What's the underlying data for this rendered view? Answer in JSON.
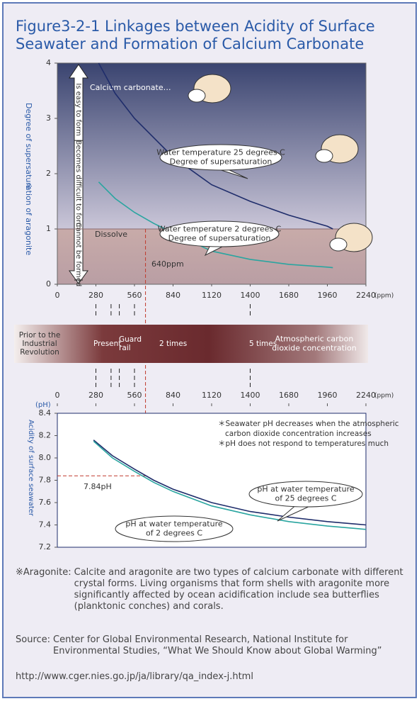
{
  "title": [
    "Figure3-2-1 Linkages between Acidity of Surface",
    "Seawater and Formation of Calcium Carbonate"
  ],
  "chart_data": [
    {
      "type": "line",
      "y_label": "Degree of supersaturation of aragonite",
      "y_label_mark": "※",
      "x_unit": "(ppm)",
      "xlim": [
        0,
        2240
      ],
      "xticks": [
        0,
        280,
        560,
        840,
        1120,
        1400,
        1680,
        1960,
        2240
      ],
      "ylim": [
        0,
        4
      ],
      "yticks": [
        0,
        1,
        2,
        3,
        4
      ],
      "threshold": 1,
      "stages": [
        "Is easy to form",
        "Becomes difficult to form",
        "Cannot be formed"
      ],
      "annotations": {
        "calcium": "Calcium carbonate…",
        "dissolve": "Dissolve"
      },
      "marker": {
        "x": 640,
        "label": "640ppm"
      },
      "x": [
        300,
        420,
        560,
        700,
        840,
        1120,
        1400,
        1680,
        1960,
        2000
      ],
      "series": [
        {
          "name": [
            "Water temperature 25 degrees C",
            "Degree of supersaturation"
          ],
          "color": "#1f2d6b",
          "values": [
            4.0,
            3.45,
            3.0,
            2.65,
            2.3,
            1.8,
            1.5,
            1.25,
            1.05,
            1.0
          ]
        },
        {
          "name": [
            "Water temperature 2 degrees C",
            "Degree of supersaturation"
          ],
          "color": "#2aa5a0",
          "values": [
            1.85,
            1.55,
            1.3,
            1.1,
            0.93,
            0.6,
            0.45,
            0.36,
            0.31,
            0.3
          ]
        }
      ]
    },
    {
      "type": "line",
      "y_label": "Acidity of surface seawater",
      "y_unit": "(pH)",
      "xlim": [
        0,
        2240
      ],
      "xticks": [
        0,
        280,
        560,
        840,
        1120,
        1400,
        1680,
        1960,
        2240
      ],
      "x_unit": "(ppm)",
      "ylim": [
        7.2,
        8.4
      ],
      "yticks": [
        7.2,
        7.4,
        7.6,
        7.8,
        {
          "value": 8,
          "label": "8.0"
        },
        8.2,
        8.4
      ],
      "notes": [
        "＊Seawater pH decreases when the atmospheric",
        "carbon dioxide concentration increases",
        "＊pH does not respond to temperatures much"
      ],
      "marker": {
        "x": 640,
        "y": 7.84,
        "label": "7.84pH"
      },
      "x": [
        263,
        400,
        560,
        700,
        840,
        1120,
        1400,
        1680,
        1960,
        2240
      ],
      "series": [
        {
          "name": [
            "pH at water temperature",
            "of 25 degrees C"
          ],
          "color": "#1f2d6b",
          "values": [
            8.16,
            8.02,
            7.9,
            7.8,
            7.72,
            7.6,
            7.52,
            7.47,
            7.43,
            7.4
          ]
        },
        {
          "name": [
            "pH at water temperature",
            "of 2 degrees C"
          ],
          "color": "#2aa5a0",
          "values": [
            8.15,
            8.0,
            7.88,
            7.78,
            7.7,
            7.57,
            7.49,
            7.43,
            7.39,
            7.36
          ]
        }
      ]
    }
  ],
  "band": {
    "items": [
      {
        "label": [
          "Prior to the",
          "Industrial",
          "Revolution"
        ],
        "ppm": 280
      },
      {
        "label": [
          "Present"
        ],
        "ppm": 390
      },
      {
        "label": [
          "Guard",
          "rail"
        ],
        "ppm": 450
      },
      {
        "label": [
          "2 times"
        ],
        "ppm": 560
      },
      {
        "label": [
          "5 times"
        ],
        "ppm": 1400
      }
    ],
    "title": [
      "Atmospheric carbon",
      "dioxide concentration"
    ]
  },
  "footnote": {
    "mark": "※Aragonite:",
    "text": "Calcite and aragonite are two types of calcium carbonate with different crystal forms. Living organisms that form shells with aragonite more significantly affected by ocean acidification include sea butterflies (planktonic conches) and corals."
  },
  "source": {
    "label": "Source:",
    "text": "Center for Global Environmental Research, National Institute for Environmental Studies, “What We Should Know about Global Warming”",
    "url": "http://www.cger.nies.go.jp/ja/library/qa_index-j.html"
  }
}
